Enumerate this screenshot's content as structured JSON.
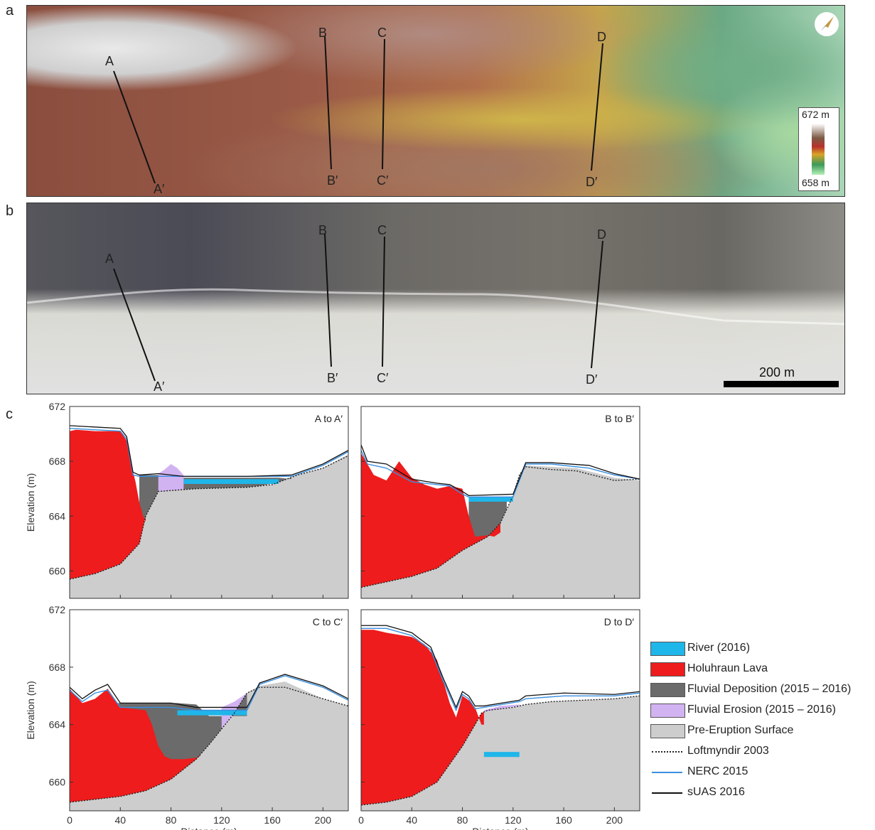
{
  "panels": {
    "a": "a",
    "b": "b",
    "c": "c"
  },
  "map_a": {
    "colorbar": {
      "top_label": "672 m",
      "bottom_label": "658 m",
      "colors": [
        "#ffffff",
        "#7b5a45",
        "#b8302c",
        "#d9a327",
        "#3c9a5a",
        "#b6f0b6"
      ]
    },
    "compass_icon": "north-arrow-icon",
    "sections": [
      {
        "start": "A",
        "end": "A′"
      },
      {
        "start": "B",
        "end": "B′"
      },
      {
        "start": "C",
        "end": "C′"
      },
      {
        "start": "D",
        "end": "D′"
      }
    ]
  },
  "map_b": {
    "scale_bar": "200 m",
    "sections": [
      {
        "start": "A",
        "end": "A′"
      },
      {
        "start": "B",
        "end": "B′"
      },
      {
        "start": "C",
        "end": "C′"
      },
      {
        "start": "D",
        "end": "D′"
      }
    ]
  },
  "chart_data": [
    {
      "type": "area",
      "title": "A to A′",
      "xlabel": "",
      "ylabel": "Elevation (m)",
      "xlim": [
        0,
        220
      ],
      "ylim": [
        658,
        672
      ],
      "xticks": [
        "0",
        "40",
        "80",
        "120",
        "160",
        "200"
      ],
      "yticks": [
        "660",
        "664",
        "668",
        "672"
      ],
      "series": [
        {
          "name": "Pre-Eruption Surface",
          "x": [
            0,
            20,
            40,
            55,
            60,
            70,
            100,
            140,
            160,
            180,
            200,
            220
          ],
          "values": [
            659.4,
            659.8,
            660.5,
            662,
            664,
            665.8,
            666.0,
            666.1,
            666.3,
            667.0,
            667.5,
            668.5
          ]
        },
        {
          "name": "Holuhraun Lava",
          "x": [
            0,
            5,
            20,
            40,
            45,
            48,
            52,
            55,
            58,
            60
          ],
          "values": [
            670.2,
            670.3,
            670.2,
            670.2,
            669.5,
            668,
            666.5,
            665,
            664,
            663.6
          ]
        },
        {
          "name": "Fluvial Deposition (2015 – 2016)",
          "x": [
            55,
            60,
            70,
            72,
            90,
            100,
            120,
            140,
            150,
            165,
            175
          ],
          "values": [
            667.0,
            667.0,
            667.0,
            666.8,
            666.8,
            666.8,
            666.8,
            666.8,
            666.8,
            666.8,
            666.7
          ]
        },
        {
          "name": "Fluvial Erosion (2015 – 2016)",
          "x": [
            70,
            75,
            80,
            85,
            90
          ],
          "values": [
            667.1,
            667.4,
            667.8,
            667.5,
            667.0
          ]
        },
        {
          "name": "River (2016)",
          "x": [
            90,
            165
          ],
          "values": [
            666.7,
            666.7
          ]
        },
        {
          "name": "Loftmyndir 2003",
          "x": [
            0,
            20,
            40,
            55,
            60,
            70,
            100,
            140,
            160,
            180,
            200,
            220
          ],
          "values": [
            659.4,
            659.8,
            660.5,
            662,
            664,
            665.8,
            666.0,
            666.1,
            666.3,
            667.0,
            667.5,
            668.4
          ]
        },
        {
          "name": "NERC 2015",
          "x": [
            0,
            40,
            45,
            50,
            55,
            70,
            90,
            140,
            175,
            200,
            220
          ],
          "values": [
            670.4,
            670.2,
            669.6,
            667,
            666.9,
            666.9,
            666.9,
            666.9,
            666.9,
            667.7,
            668.7
          ]
        },
        {
          "name": "sUAS 2016",
          "x": [
            0,
            40,
            45,
            50,
            55,
            70,
            90,
            140,
            175,
            200,
            220
          ],
          "values": [
            670.6,
            670.4,
            669.8,
            667.2,
            667.0,
            667.1,
            666.9,
            666.9,
            667.0,
            667.8,
            668.8
          ]
        }
      ]
    },
    {
      "type": "area",
      "title": "B to B′",
      "xlabel": "",
      "ylabel": "",
      "xlim": [
        0,
        220
      ],
      "ylim": [
        658,
        672
      ],
      "xticks": [
        "0",
        "40",
        "80",
        "120",
        "160",
        "200"
      ],
      "yticks": [
        "660",
        "664",
        "668",
        "672"
      ],
      "series": [
        {
          "name": "Pre-Eruption Surface",
          "x": [
            0,
            20,
            40,
            60,
            80,
            100,
            110,
            120,
            125,
            130,
            150,
            170,
            200,
            220
          ],
          "values": [
            658.8,
            659.2,
            659.6,
            660.2,
            661.5,
            662.5,
            663.5,
            665.5,
            667,
            667.7,
            667.6,
            667.5,
            666.8,
            666.6
          ]
        },
        {
          "name": "Holuhraun Lava",
          "x": [
            0,
            5,
            10,
            20,
            30,
            40,
            50,
            60,
            70,
            80,
            85,
            90,
            100,
            105,
            110
          ],
          "values": [
            668.6,
            667.8,
            667.0,
            666.6,
            668.0,
            666.8,
            666.3,
            666.0,
            666.2,
            666.0,
            664.0,
            662.5,
            662.6,
            662.5,
            662.8
          ]
        },
        {
          "name": "Fluvial Deposition (2015 – 2016)",
          "x": [
            85,
            90,
            100,
            110,
            115
          ],
          "values": [
            665.3,
            665.3,
            665.3,
            665.3,
            665.3
          ]
        },
        {
          "name": "River (2016)",
          "x": [
            85,
            120
          ],
          "values": [
            665.4,
            665.4
          ]
        },
        {
          "name": "Loftmyndir 2003",
          "x": [
            0,
            20,
            40,
            60,
            80,
            100,
            110,
            120,
            125,
            130,
            150,
            170,
            200,
            220
          ],
          "values": [
            658.8,
            659.2,
            659.6,
            660.2,
            661.5,
            662.5,
            663.5,
            665.5,
            667,
            667.6,
            667.4,
            667.3,
            666.6,
            666.7
          ]
        },
        {
          "name": "NERC 2015",
          "x": [
            0,
            5,
            20,
            40,
            60,
            70,
            80,
            85,
            120,
            130,
            150,
            180,
            200,
            220
          ],
          "values": [
            668.8,
            667.8,
            667.5,
            666.5,
            666.3,
            666.2,
            665.6,
            665.4,
            665.4,
            667.8,
            667.8,
            667.5,
            667.0,
            666.7
          ]
        },
        {
          "name": "sUAS 2016",
          "x": [
            0,
            5,
            20,
            40,
            60,
            70,
            80,
            85,
            120,
            130,
            150,
            180,
            200,
            220
          ],
          "values": [
            669.2,
            668.0,
            667.8,
            666.7,
            666.4,
            666.3,
            665.8,
            665.5,
            665.6,
            667.9,
            667.9,
            667.7,
            667.1,
            666.7
          ]
        }
      ]
    },
    {
      "type": "area",
      "title": "C to C′",
      "xlabel": "Distance (m)",
      "ylabel": "Elevation (m)",
      "xlim": [
        0,
        220
      ],
      "ylim": [
        658,
        672
      ],
      "xticks": [
        "0",
        "40",
        "80",
        "120",
        "160",
        "200"
      ],
      "yticks": [
        "660",
        "664",
        "668",
        "672"
      ],
      "series": [
        {
          "name": "Pre-Eruption Surface",
          "x": [
            0,
            20,
            40,
            60,
            80,
            100,
            110,
            130,
            140,
            150,
            170,
            200,
            220
          ],
          "values": [
            658.6,
            658.8,
            659.0,
            659.4,
            660.2,
            661.6,
            662.6,
            664.8,
            666.2,
            666.7,
            667.0,
            665.8,
            665.3
          ]
        },
        {
          "name": "Holuhraun Lava",
          "x": [
            0,
            10,
            20,
            30,
            40,
            60,
            65,
            70,
            75,
            80,
            90,
            100,
            103
          ],
          "values": [
            666.5,
            665.5,
            665.8,
            666.5,
            665.2,
            665.0,
            664.0,
            662.5,
            661.8,
            661.6,
            661.6,
            661.7,
            661.8
          ]
        },
        {
          "name": "Fluvial Deposition (2015 – 2016)",
          "x": [
            35,
            50,
            70,
            85,
            100,
            110,
            120,
            140
          ],
          "values": [
            665.5,
            665.5,
            665.5,
            665.5,
            665.4,
            664.6,
            664.6,
            664.6
          ]
        },
        {
          "name": "Fluvial Erosion (2015 – 2016)",
          "x": [
            120,
            130,
            140
          ],
          "values": [
            665.2,
            665.6,
            666.2
          ]
        },
        {
          "name": "River (2016)",
          "x": [
            85,
            140
          ],
          "values": [
            665.0,
            665.0
          ]
        },
        {
          "name": "Loftmyndir 2003",
          "x": [
            0,
            20,
            40,
            60,
            80,
            100,
            110,
            130,
            140,
            150,
            170,
            200,
            220
          ],
          "values": [
            658.6,
            658.8,
            659.0,
            659.4,
            660.2,
            661.6,
            662.6,
            664.8,
            666.2,
            666.6,
            666.6,
            665.8,
            665.3
          ]
        },
        {
          "name": "NERC 2015",
          "x": [
            0,
            10,
            20,
            30,
            40,
            80,
            100,
            140,
            150,
            170,
            200,
            220
          ],
          "values": [
            666.4,
            665.6,
            666.2,
            666.4,
            665.2,
            665.2,
            665.0,
            665.0,
            666.8,
            667.4,
            666.6,
            665.7
          ]
        },
        {
          "name": "sUAS 2016",
          "x": [
            0,
            10,
            20,
            30,
            40,
            80,
            100,
            140,
            150,
            170,
            200,
            220
          ],
          "values": [
            666.6,
            665.8,
            666.4,
            666.8,
            665.5,
            665.5,
            665.2,
            665.2,
            666.9,
            667.5,
            666.7,
            665.8
          ]
        }
      ]
    },
    {
      "type": "area",
      "title": "D to D′",
      "xlabel": "Distance (m)",
      "ylabel": "",
      "xlim": [
        0,
        220
      ],
      "ylim": [
        658,
        672
      ],
      "xticks": [
        "0",
        "40",
        "80",
        "120",
        "160",
        "200"
      ],
      "yticks": [
        "660",
        "664",
        "668",
        "672"
      ],
      "series": [
        {
          "name": "Pre-Eruption Surface",
          "x": [
            0,
            20,
            40,
            60,
            80,
            90,
            95,
            100,
            120,
            125,
            130,
            150,
            200,
            220
          ],
          "values": [
            658.4,
            658.6,
            659.0,
            660.0,
            662.5,
            664.0,
            664.8,
            665.0,
            665.2,
            665.3,
            665.4,
            665.6,
            665.8,
            666.0
          ]
        },
        {
          "name": "Holuhraun Lava",
          "x": [
            0,
            10,
            20,
            40,
            50,
            60,
            70,
            75,
            80,
            85,
            90,
            95,
            97
          ],
          "values": [
            670.6,
            670.6,
            670.4,
            670.1,
            669.6,
            668.5,
            665.5,
            664.5,
            666.0,
            665.7,
            665.2,
            664.0,
            664.0
          ]
        },
        {
          "name": "Fluvial Erosion (2015 – 2016)",
          "x": [
            97,
            110,
            125
          ],
          "values": [
            665.0,
            665.3,
            665.4
          ]
        },
        {
          "name": "River (2016)",
          "x": [
            97,
            125
          ],
          "values": [
            662.1,
            662.1
          ]
        },
        {
          "name": "Loftmyndir 2003",
          "x": [
            0,
            20,
            40,
            60,
            80,
            90,
            95,
            100,
            120,
            125,
            130,
            150,
            200,
            220
          ],
          "values": [
            658.4,
            658.6,
            659.0,
            660.0,
            662.5,
            664.0,
            664.8,
            665.0,
            665.2,
            665.3,
            665.4,
            665.6,
            665.8,
            666.0
          ]
        },
        {
          "name": "NERC 2015",
          "x": [
            0,
            20,
            40,
            55,
            65,
            75,
            80,
            85,
            90,
            97,
            125,
            130,
            160,
            200,
            220
          ],
          "values": [
            670.7,
            670.7,
            670.2,
            669.2,
            667.0,
            665.0,
            666.1,
            665.8,
            665.1,
            665.2,
            665.6,
            665.8,
            666.0,
            666.0,
            666.2
          ]
        },
        {
          "name": "sUAS 2016",
          "x": [
            0,
            20,
            40,
            55,
            65,
            75,
            80,
            85,
            90,
            97,
            125,
            130,
            160,
            200,
            220
          ],
          "values": [
            670.9,
            670.9,
            670.4,
            669.4,
            667.2,
            665.2,
            666.3,
            666.0,
            665.3,
            665.3,
            665.7,
            666.0,
            666.2,
            666.1,
            666.3
          ]
        }
      ]
    }
  ],
  "legend": {
    "items": [
      {
        "label": "River (2016)",
        "kind": "box",
        "color": "#1fb6ea"
      },
      {
        "label": "Holuhraun Lava",
        "kind": "box",
        "color": "#ee1c1c"
      },
      {
        "label": "Fluvial Deposition (2015 – 2016)",
        "kind": "box",
        "color": "#6b6b6b"
      },
      {
        "label": "Fluvial Erosion (2015 – 2016)",
        "kind": "box",
        "color": "#d2b3f2"
      },
      {
        "label": "Pre-Eruption Surface",
        "kind": "box",
        "color": "#cdcdcd"
      },
      {
        "label": "Loftmyndir 2003",
        "kind": "dotted",
        "color": "#222222"
      },
      {
        "label": "NERC 2015",
        "kind": "line",
        "color": "#3a8fe0"
      },
      {
        "label": "sUAS 2016",
        "kind": "line",
        "color": "#111111"
      }
    ]
  }
}
